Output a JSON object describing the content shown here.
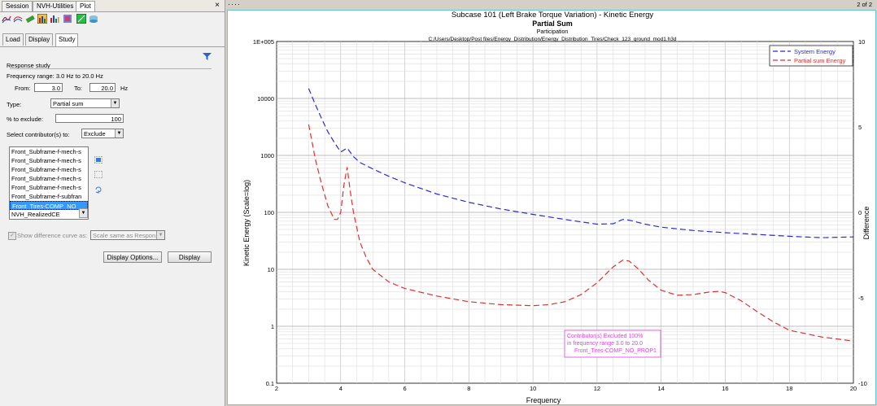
{
  "tabs": [
    "Session",
    "NVH-Utilities",
    "Plot"
  ],
  "close_label": "×",
  "page_indicator": "2 of 2",
  "toolbar_icons": [
    "curve-icon",
    "multi-curve-icon",
    "eraser-icon",
    "energy-icon",
    "bar-chart-icon",
    "nvh-icon",
    "energy-green-icon",
    "cylinder-icon"
  ],
  "subtabs": [
    "Load",
    "Display",
    "Study"
  ],
  "response_study": {
    "heading": "Response study",
    "freq_range": "Frequency range: 3.0 Hz to 20.0 Hz",
    "from_label": "From:",
    "from_value": "3.0",
    "to_label": "To:",
    "to_value": "20.0",
    "hz": "Hz",
    "type_label": "Type:",
    "type_value": "Partial sum",
    "exclude_label": "% to exclude:",
    "exclude_value": "100",
    "select_label": "Select contributor(s) to:",
    "select_value": "Exclude",
    "contributors": [
      "Front_Subframe-f-mech-s",
      "Front_Subframe-f-mech-s",
      "Front_Subframe-f-mech-s",
      "Front_Subframe-f-mech-s",
      "Front_Subframe-f-mech-s",
      "Front_Subframe-f-subfran",
      "Front_Tires-COMP_NO_",
      "NVH_RealizedCE"
    ],
    "selected_index": 6,
    "show_diff_label": "Show difference curve as:",
    "show_diff_value": "Scale same as Respon",
    "display_options": "Display Options...",
    "display": "Display"
  },
  "chart_data": {
    "type": "line",
    "title": "Subcase 101 (Left Brake Torque Variation) - Kinetic Energy",
    "subtitle": "Partial Sum",
    "subtitle2": "Participation",
    "filepath": "C:/Users/Desktop/Post files/Energy_Distribution/Energy_Distribution_Tires/Check_123_ground_mod1.h3d",
    "xlabel": "Frequency",
    "ylabel": "Kinetic Energy (Scale=log)",
    "y2label": "Difference",
    "xlim": [
      2,
      20
    ],
    "ylim": [
      0.1,
      100000
    ],
    "y2lim": [
      -10,
      10
    ],
    "x_ticks": [
      "2",
      "4",
      "6",
      "8",
      "10",
      "12",
      "14",
      "16",
      "18",
      "20"
    ],
    "y_ticks": [
      "0.1",
      "1",
      "10",
      "100",
      "1000",
      "10000",
      "1E+005"
    ],
    "y2_ticks": [
      "-10",
      "-5",
      "0",
      "5",
      "10"
    ],
    "legend_position": "top-right",
    "series": [
      {
        "name": "System  Energy",
        "color": "#2a2ad8",
        "x": [
          3.0,
          3.2,
          3.4,
          3.6,
          3.8,
          4.0,
          4.2,
          4.4,
          4.6,
          5.0,
          5.5,
          6.0,
          7.0,
          8.0,
          9.0,
          10.0,
          11.0,
          11.5,
          12.0,
          12.5,
          12.8,
          13.0,
          13.5,
          14.0,
          15.0,
          16.0,
          17.0,
          18.0,
          19.0,
          20.0
        ],
        "y": [
          15000,
          8000,
          4500,
          2600,
          1700,
          1150,
          1350,
          950,
          750,
          580,
          430,
          330,
          210,
          150,
          115,
          92,
          75,
          68,
          62,
          63,
          75,
          73,
          62,
          55,
          48,
          44,
          41,
          38,
          36,
          37
        ]
      },
      {
        "name": "Partial sum Energy",
        "color": "#e03030",
        "x": [
          3.0,
          3.1,
          3.2,
          3.4,
          3.6,
          3.8,
          3.9,
          4.0,
          4.1,
          4.2,
          4.3,
          4.4,
          4.6,
          4.8,
          5.0,
          5.5,
          6.0,
          7.0,
          8.0,
          9.0,
          10.0,
          10.5,
          11.0,
          11.5,
          12.0,
          12.5,
          12.8,
          13.0,
          13.3,
          13.6,
          14.0,
          14.5,
          15.0,
          15.5,
          15.8,
          16.0,
          16.5,
          17.0,
          17.5,
          18.0,
          19.0,
          20.0
        ],
        "y": [
          3500,
          1800,
          900,
          320,
          130,
          75,
          75,
          100,
          300,
          620,
          230,
          100,
          30,
          16,
          10,
          6,
          4.6,
          3.4,
          2.7,
          2.4,
          2.3,
          2.4,
          2.7,
          3.6,
          5.8,
          11,
          14.5,
          14,
          10,
          6.5,
          4.3,
          3.5,
          3.6,
          4,
          4.1,
          3.9,
          2.8,
          1.8,
          1.2,
          0.85,
          0.65,
          0.55
        ]
      }
    ],
    "annotation": [
      "Contributor(s) Excluded 100%",
      "in frequency range 3.0 to 20.0",
      "Front_Tires-COMP_NO_PROP1"
    ]
  }
}
